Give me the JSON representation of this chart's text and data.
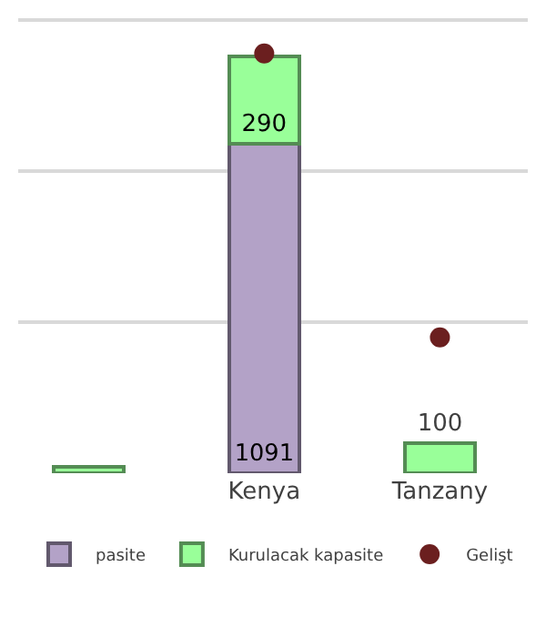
{
  "chart_data": {
    "type": "bar",
    "stacked": true,
    "categories": [
      null,
      "Kenya",
      "Tanzany"
    ],
    "series": [
      {
        "name": "pasite",
        "color": "#b3a2c7",
        "values": [
          null,
          1091,
          null
        ],
        "value_labels": [
          null,
          "1091",
          null
        ]
      },
      {
        "name": "Kurulacak kapasite",
        "color": "#99ff99",
        "values": [
          20,
          290,
          100
        ],
        "value_labels": [
          null,
          "290",
          "100"
        ]
      },
      {
        "name": "Gelişt",
        "type": "scatter",
        "color": "#6b1f1f",
        "values": [
          null,
          1390,
          450
        ]
      }
    ],
    "grid": "y",
    "tick_labels": "x",
    "legend": "bottom",
    "marker": "circle"
  }
}
